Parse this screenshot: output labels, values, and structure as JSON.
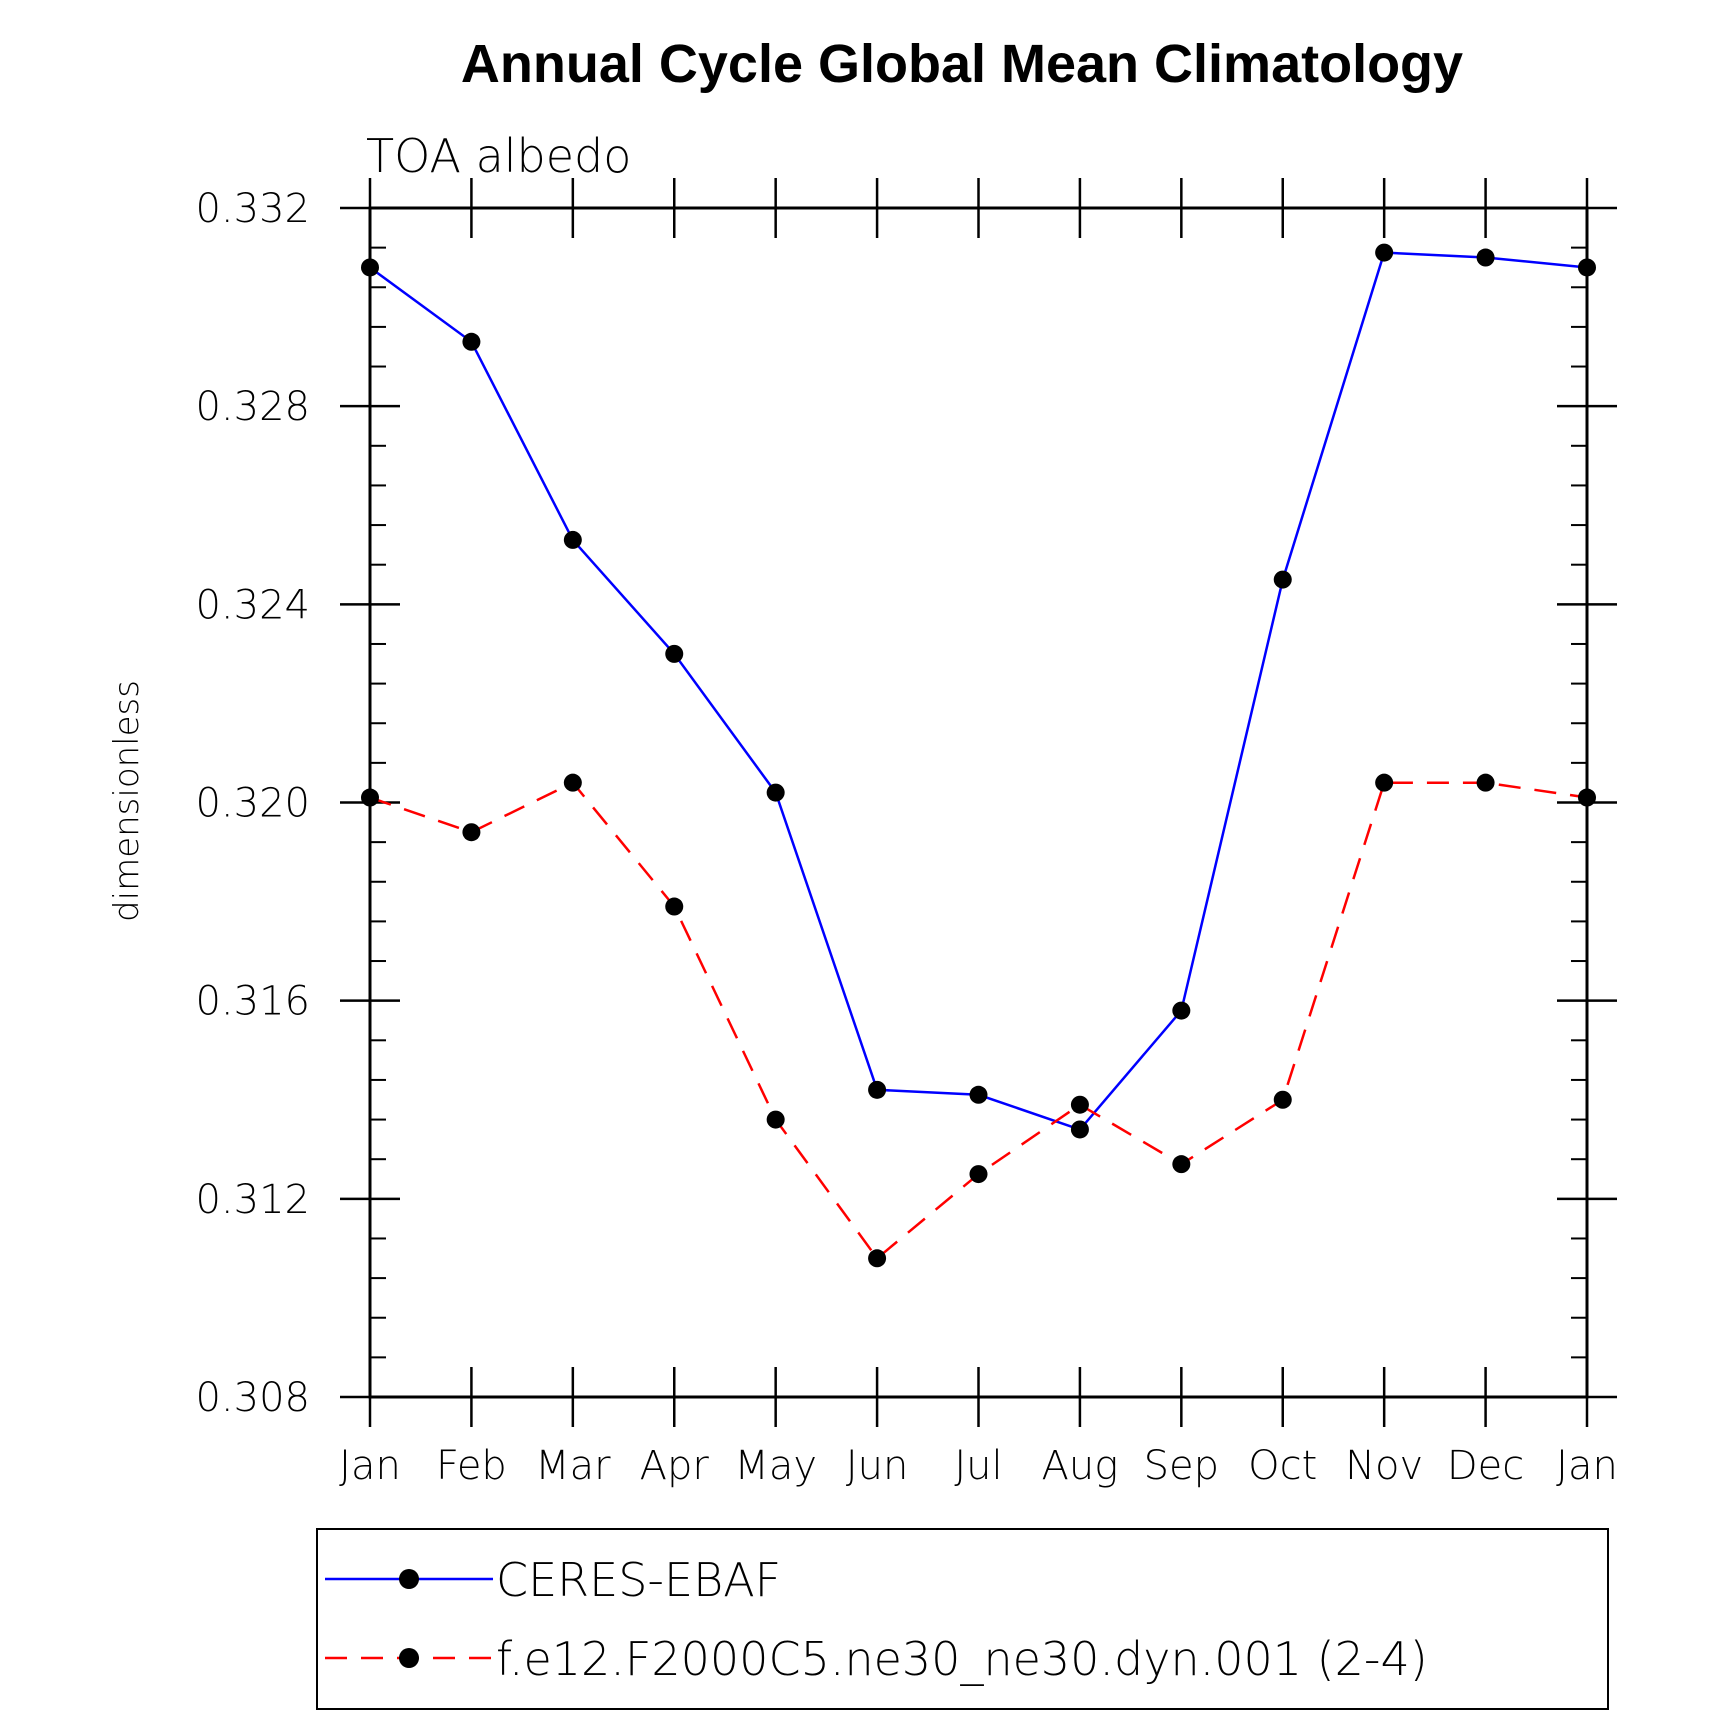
{
  "chart_data": {
    "type": "line",
    "title": "Annual Cycle Global Mean Climatology",
    "subtitle": "TOA albedo",
    "xlabel": "",
    "ylabel": "dimensionless",
    "categories": [
      "Jan",
      "Feb",
      "Mar",
      "Apr",
      "May",
      "Jun",
      "Jul",
      "Aug",
      "Sep",
      "Oct",
      "Nov",
      "Dec",
      "Jan"
    ],
    "ylim": [
      0.308,
      0.332
    ],
    "yticks": [
      "0.308",
      "0.312",
      "0.316",
      "0.320",
      "0.324",
      "0.328",
      "0.332"
    ],
    "grid": false,
    "legend_position": "bottom",
    "series": [
      {
        "name": "CERES-EBAF",
        "color": "#0000ff",
        "style": "solid",
        "marker": "filled-circle",
        "values": [
          0.3308,
          0.3293,
          0.3253,
          0.323,
          0.3202,
          0.3142,
          0.3141,
          0.3134,
          0.3158,
          0.3245,
          0.3311,
          0.331,
          0.3308
        ]
      },
      {
        "name": "f.e12.F2000C5.ne30_ne30.dyn.001 (2-4)",
        "color": "#ff0000",
        "style": "dashed",
        "marker": "filled-circle",
        "values": [
          0.3201,
          0.3194,
          0.3204,
          0.3179,
          0.3136,
          0.3108,
          0.3125,
          0.3139,
          0.3127,
          0.314,
          0.3204,
          0.3204,
          0.3201
        ]
      }
    ]
  }
}
